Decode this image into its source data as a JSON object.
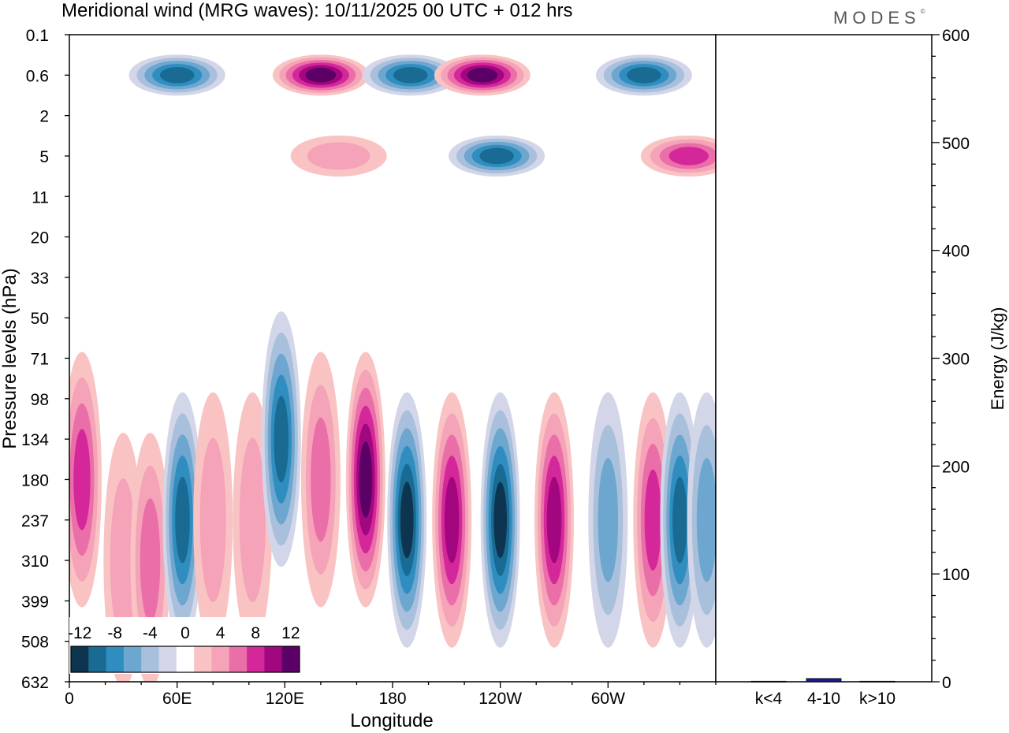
{
  "title": "Meridional wind (MRG waves):  10/11/2025  00 UTC  + 012 hrs",
  "logo": "MODES",
  "chart_data": [
    {
      "type": "heatmap",
      "title": "Meridional wind (MRG waves)",
      "xlabel": "Longitude",
      "ylabel": "Pressure levels (hPa)",
      "x_ticks": [
        "0",
        "60E",
        "120E",
        "180",
        "120W",
        "60W"
      ],
      "x_tick_values": [
        0,
        60,
        120,
        180,
        240,
        300
      ],
      "xlim": [
        0,
        360
      ],
      "y_ticks": [
        "0.1",
        "0.6",
        "2",
        "5",
        "11",
        "20",
        "33",
        "50",
        "71",
        "98",
        "134",
        "180",
        "237",
        "310",
        "399",
        "508",
        "632"
      ],
      "colorbar": {
        "levels": [
          -14,
          -12,
          -10,
          -8,
          -6,
          -4,
          -2,
          2,
          4,
          6,
          8,
          10,
          12,
          14
        ],
        "tick_labels": [
          "-12",
          "-8",
          "-4",
          "0",
          "4",
          "8",
          "12"
        ],
        "colors": [
          "#0d3550",
          "#1a6b93",
          "#2f8dc0",
          "#6da6cf",
          "#a9c0dc",
          "#d3d6e8",
          "#ffffff",
          "#f9c3c3",
          "#f5a3b8",
          "#ea6fa8",
          "#d4289a",
          "#a3077f",
          "#5a0066"
        ]
      },
      "features": [
        {
          "lon": 7,
          "level": "180",
          "value": 7
        },
        {
          "lon": 30,
          "level": "310",
          "value": 3
        },
        {
          "lon": 45,
          "level": "310",
          "value": 6
        },
        {
          "lon": 63,
          "level": "237",
          "value": -9
        },
        {
          "lon": 80,
          "level": "237",
          "value": 3
        },
        {
          "lon": 102,
          "level": "237",
          "value": 3
        },
        {
          "lon": 118,
          "level": "134",
          "value": -9
        },
        {
          "lon": 140,
          "level": "180",
          "value": 5
        },
        {
          "lon": 165,
          "level": "180",
          "value": 12
        },
        {
          "lon": 188,
          "level": "237",
          "value": -14
        },
        {
          "lon": 213,
          "level": "237",
          "value": 10
        },
        {
          "lon": 240,
          "level": "237",
          "value": -13
        },
        {
          "lon": 270,
          "level": "237",
          "value": 10
        },
        {
          "lon": 300,
          "level": "237",
          "value": -5
        },
        {
          "lon": 325,
          "level": "237",
          "value": 8
        },
        {
          "lon": 340,
          "level": "237",
          "value": -9
        },
        {
          "lon": 355,
          "level": "237",
          "value": -5
        },
        {
          "lon": 60,
          "level": "0.6",
          "value": -9
        },
        {
          "lon": 140,
          "level": "0.6",
          "value": 13
        },
        {
          "lon": 190,
          "level": "0.6",
          "value": -9
        },
        {
          "lon": 230,
          "level": "0.6",
          "value": 13
        },
        {
          "lon": 320,
          "level": "0.6",
          "value": -9
        },
        {
          "lon": 150,
          "level": "5",
          "value": 3
        },
        {
          "lon": 238,
          "level": "5",
          "value": -9
        },
        {
          "lon": 345,
          "level": "5",
          "value": 7
        }
      ]
    },
    {
      "type": "bar",
      "ylabel": "Energy (J/kg)",
      "ylim": [
        0,
        600
      ],
      "y_ticks": [
        "0",
        "100",
        "200",
        "300",
        "400",
        "500",
        "600"
      ],
      "categories": [
        "k<4",
        "4-10",
        "k>10"
      ],
      "values": [
        0.5,
        3,
        0.5
      ]
    }
  ]
}
